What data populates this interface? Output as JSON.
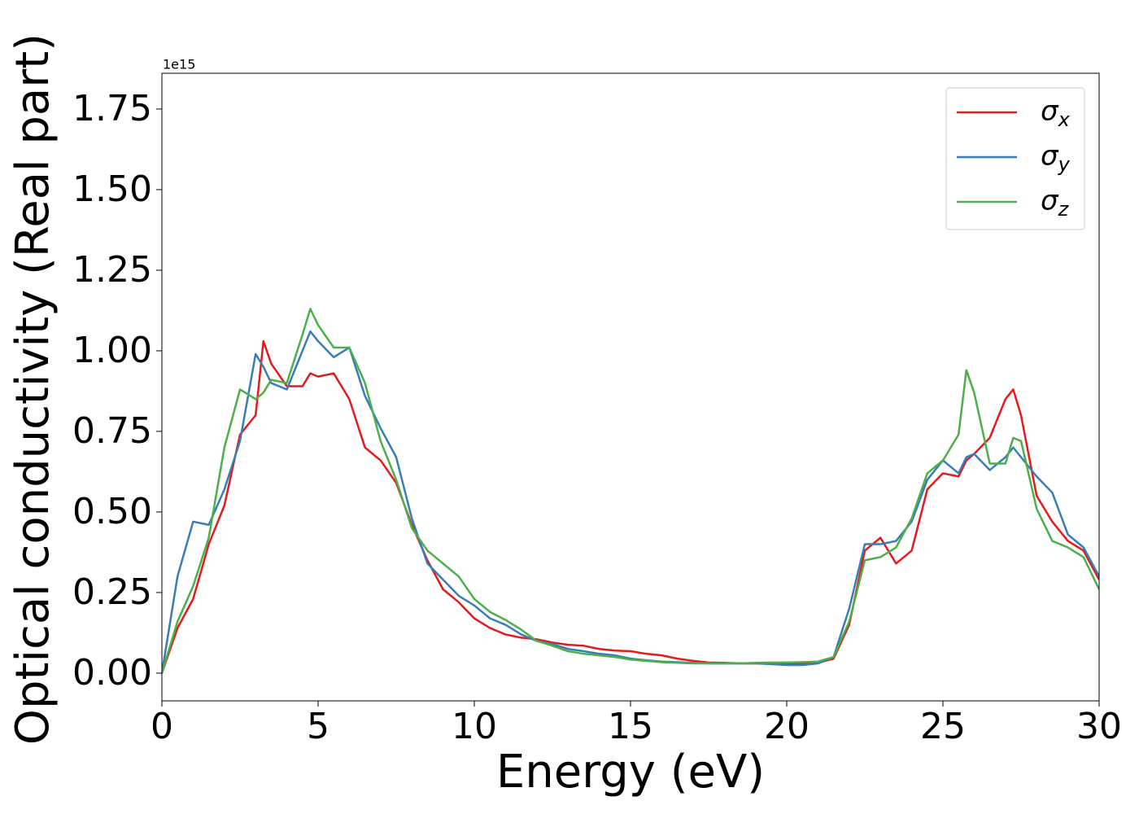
{
  "chart_data": {
    "type": "line",
    "x_label": "Energy (eV)",
    "y_label": "Optical conductivity (Real part)",
    "y_offset_label": "1e15",
    "x": [
      0,
      0.5,
      1,
      1.5,
      2,
      2.5,
      3,
      3.25,
      3.5,
      4,
      4.5,
      4.75,
      5,
      5.5,
      6,
      6.5,
      7,
      7.5,
      8,
      8.5,
      9,
      9.5,
      10,
      10.5,
      11,
      11.5,
      12,
      12.5,
      13,
      13.5,
      14,
      14.5,
      15,
      15.5,
      16,
      16.5,
      17,
      17.5,
      18,
      18.5,
      19,
      19.5,
      20,
      20.5,
      21,
      21.5,
      22,
      22.5,
      23,
      23.5,
      24,
      24.5,
      25,
      25.5,
      25.75,
      26,
      26.5,
      27,
      27.25,
      27.5,
      28,
      28.5,
      29,
      29.5,
      30
    ],
    "series": [
      {
        "name": "σx",
        "color": "#e41a1c",
        "values": [
          0,
          0.14,
          0.23,
          0.4,
          0.52,
          0.74,
          0.8,
          1.03,
          0.96,
          0.89,
          0.89,
          0.93,
          0.92,
          0.93,
          0.85,
          0.7,
          0.66,
          0.59,
          0.46,
          0.35,
          0.26,
          0.22,
          0.17,
          0.14,
          0.12,
          0.11,
          0.105,
          0.095,
          0.088,
          0.085,
          0.075,
          0.07,
          0.068,
          0.06,
          0.055,
          0.045,
          0.038,
          0.033,
          0.032,
          0.03,
          0.03,
          0.03,
          0.03,
          0.03,
          0.032,
          0.045,
          0.15,
          0.38,
          0.42,
          0.34,
          0.38,
          0.57,
          0.62,
          0.61,
          0.66,
          0.68,
          0.73,
          0.85,
          0.88,
          0.8,
          0.55,
          0.47,
          0.41,
          0.38,
          0.29
        ]
      },
      {
        "name": "σy",
        "color": "#377eb8",
        "values": [
          0,
          0.3,
          0.47,
          0.46,
          0.57,
          0.72,
          0.99,
          0.95,
          0.9,
          0.88,
          1.0,
          1.06,
          1.03,
          0.98,
          1.01,
          0.86,
          0.76,
          0.67,
          0.48,
          0.34,
          0.29,
          0.24,
          0.21,
          0.17,
          0.15,
          0.12,
          0.1,
          0.09,
          0.075,
          0.068,
          0.06,
          0.055,
          0.045,
          0.04,
          0.036,
          0.034,
          0.032,
          0.03,
          0.03,
          0.03,
          0.03,
          0.028,
          0.025,
          0.025,
          0.03,
          0.05,
          0.2,
          0.4,
          0.4,
          0.41,
          0.47,
          0.6,
          0.66,
          0.62,
          0.67,
          0.68,
          0.63,
          0.67,
          0.7,
          0.67,
          0.61,
          0.56,
          0.43,
          0.39,
          0.3
        ]
      },
      {
        "name": "σz",
        "color": "#4daf4a",
        "values": [
          0,
          0.16,
          0.27,
          0.42,
          0.7,
          0.88,
          0.85,
          0.87,
          0.91,
          0.9,
          1.05,
          1.13,
          1.08,
          1.01,
          1.01,
          0.9,
          0.72,
          0.6,
          0.45,
          0.38,
          0.34,
          0.3,
          0.23,
          0.19,
          0.165,
          0.135,
          0.1,
          0.085,
          0.068,
          0.06,
          0.055,
          0.05,
          0.042,
          0.038,
          0.034,
          0.032,
          0.03,
          0.03,
          0.03,
          0.03,
          0.032,
          0.033,
          0.033,
          0.034,
          0.036,
          0.05,
          0.16,
          0.35,
          0.36,
          0.39,
          0.48,
          0.62,
          0.66,
          0.74,
          0.94,
          0.87,
          0.65,
          0.65,
          0.73,
          0.72,
          0.51,
          0.41,
          0.39,
          0.36,
          0.26
        ]
      }
    ],
    "xlim": [
      0,
      30
    ],
    "xticks": [
      0,
      5,
      10,
      15,
      20,
      25,
      30
    ],
    "ylim": [
      -0.086,
      1.861
    ],
    "yticks": [
      {
        "value": 0,
        "label": "0.00"
      },
      {
        "value": 0.25,
        "label": "0.25"
      },
      {
        "value": 0.5,
        "label": "0.50"
      },
      {
        "value": 0.75,
        "label": "0.75"
      },
      {
        "value": 1,
        "label": "1.00"
      },
      {
        "value": 1.25,
        "label": "1.25"
      },
      {
        "value": 1.5,
        "label": "1.50"
      },
      {
        "value": 1.75,
        "label": "1.75"
      }
    ],
    "legend": "upper right",
    "grid": false
  }
}
